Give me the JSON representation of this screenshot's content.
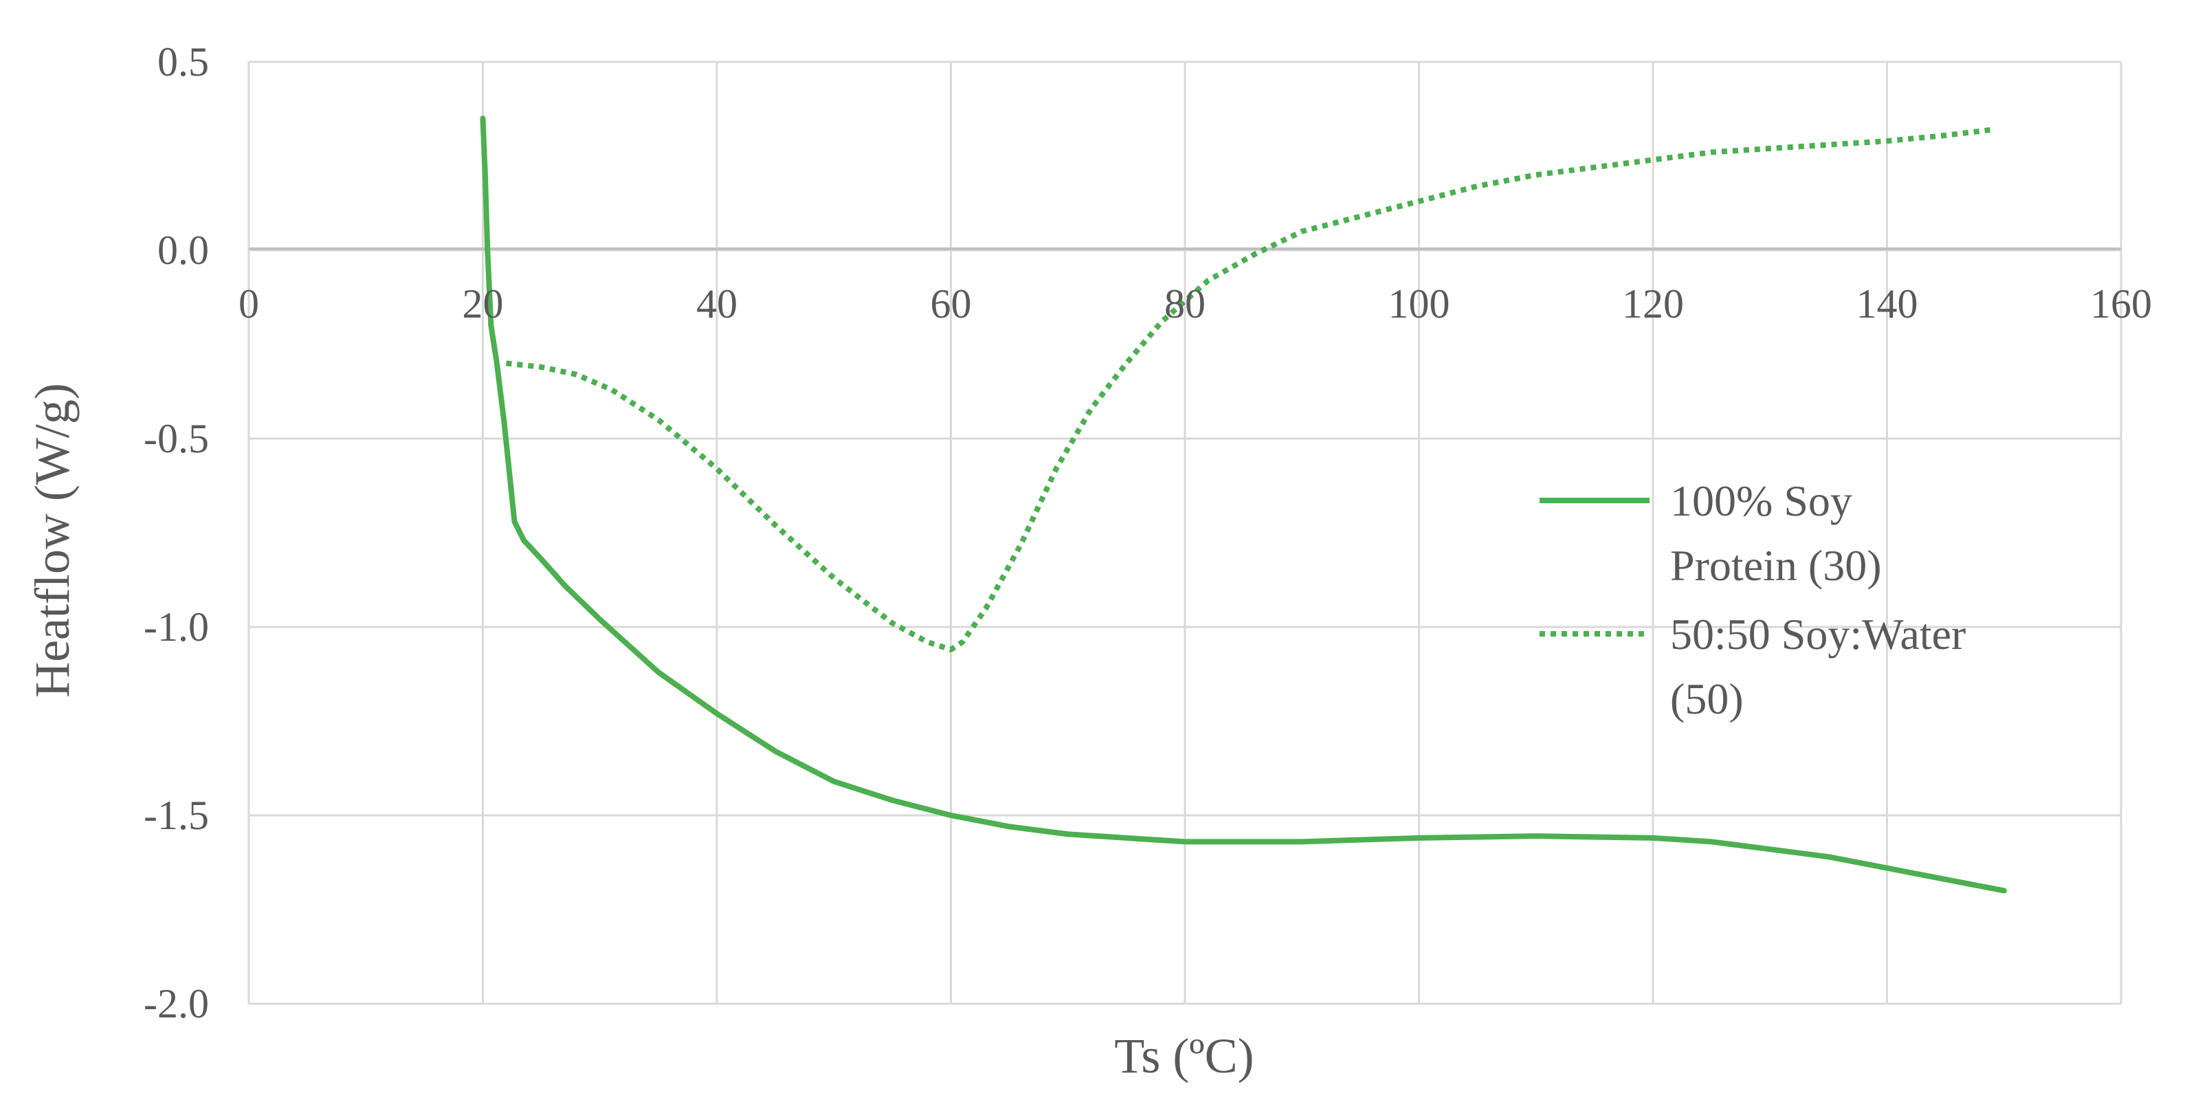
{
  "chart_data": {
    "type": "line",
    "title": "",
    "xlabel": "Ts (ºC)",
    "ylabel": "Heatflow (W/g)",
    "xlim": [
      0,
      160
    ],
    "ylim": [
      -2.0,
      0.5
    ],
    "x_ticks": [
      0,
      20,
      40,
      60,
      80,
      100,
      120,
      140,
      160
    ],
    "x_tick_labels": [
      "0",
      "20",
      "40",
      "60",
      "80",
      "100",
      "120",
      "140",
      "160"
    ],
    "y_ticks": [
      0.5,
      0.0,
      -0.5,
      -1.0,
      -1.5,
      -2.0
    ],
    "y_tick_labels": [
      "0.5",
      "0.0",
      "-0.5",
      "-1.0",
      "-1.5",
      "-2.0"
    ],
    "grid": true,
    "legend_position": "right",
    "series": [
      {
        "name_lines": [
          "100% Soy",
          "Protein (30)"
        ],
        "color": "#4CAF50",
        "style": "solid",
        "points": [
          [
            20.0,
            0.35
          ],
          [
            20.2,
            0.2
          ],
          [
            20.4,
            0.0
          ],
          [
            20.7,
            -0.2
          ],
          [
            21.2,
            -0.3
          ],
          [
            21.8,
            -0.45
          ],
          [
            22.3,
            -0.6
          ],
          [
            22.7,
            -0.72
          ],
          [
            23.5,
            -0.77
          ],
          [
            25,
            -0.82
          ],
          [
            27,
            -0.89
          ],
          [
            30,
            -0.98
          ],
          [
            35,
            -1.12
          ],
          [
            40,
            -1.23
          ],
          [
            45,
            -1.33
          ],
          [
            50,
            -1.41
          ],
          [
            55,
            -1.46
          ],
          [
            60,
            -1.5
          ],
          [
            65,
            -1.53
          ],
          [
            70,
            -1.55
          ],
          [
            75,
            -1.56
          ],
          [
            80,
            -1.57
          ],
          [
            90,
            -1.57
          ],
          [
            100,
            -1.56
          ],
          [
            110,
            -1.555
          ],
          [
            120,
            -1.56
          ],
          [
            125,
            -1.57
          ],
          [
            130,
            -1.59
          ],
          [
            135,
            -1.61
          ],
          [
            140,
            -1.64
          ],
          [
            145,
            -1.67
          ],
          [
            150,
            -1.7
          ]
        ]
      },
      {
        "name_lines": [
          "50:50 Soy:Water",
          "(50)"
        ],
        "color": "#4CAF50",
        "style": "dotted",
        "points": [
          [
            22,
            -0.3
          ],
          [
            25,
            -0.31
          ],
          [
            28,
            -0.33
          ],
          [
            31,
            -0.37
          ],
          [
            35,
            -0.45
          ],
          [
            40,
            -0.58
          ],
          [
            45,
            -0.73
          ],
          [
            50,
            -0.87
          ],
          [
            55,
            -0.99
          ],
          [
            58,
            -1.04
          ],
          [
            60,
            -1.06
          ],
          [
            61,
            -1.04
          ],
          [
            63,
            -0.95
          ],
          [
            66,
            -0.78
          ],
          [
            69,
            -0.58
          ],
          [
            72,
            -0.42
          ],
          [
            75,
            -0.3
          ],
          [
            78,
            -0.19
          ],
          [
            82,
            -0.08
          ],
          [
            86,
            -0.01
          ],
          [
            90,
            0.05
          ],
          [
            95,
            0.09
          ],
          [
            100,
            0.13
          ],
          [
            105,
            0.17
          ],
          [
            110,
            0.2
          ],
          [
            115,
            0.22
          ],
          [
            120,
            0.24
          ],
          [
            125,
            0.26
          ],
          [
            130,
            0.27
          ],
          [
            135,
            0.28
          ],
          [
            140,
            0.29
          ],
          [
            145,
            0.305
          ],
          [
            149,
            0.32
          ]
        ]
      }
    ]
  }
}
